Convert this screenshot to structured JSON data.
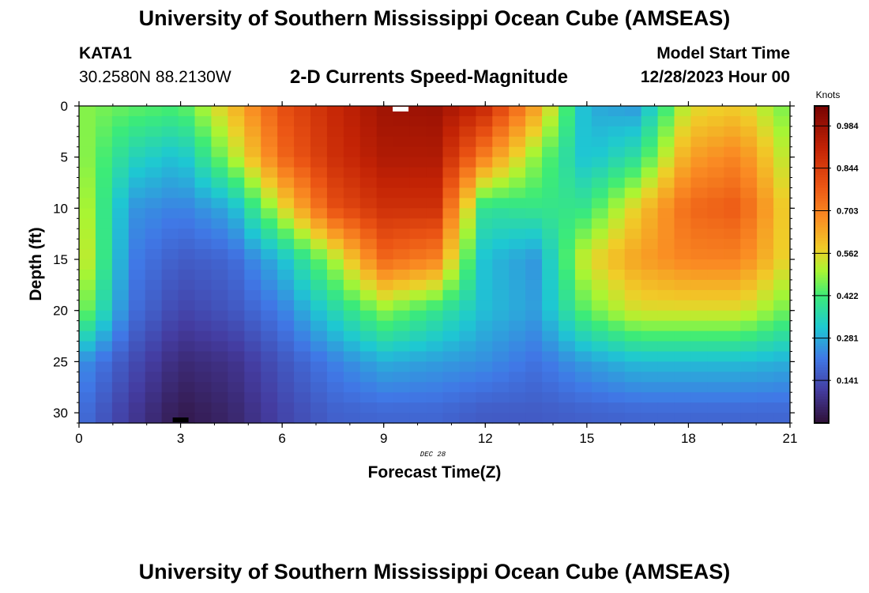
{
  "header": {
    "title": "University of Southern Mississippi Ocean Cube (AMSEAS)",
    "station_id": "KATA1",
    "station_coords": "30.2580N  88.2130W",
    "plot_title": "2-D Currents Speed-Magnitude",
    "model_start_label": "Model Start Time",
    "model_start_value": "12/28/2023 Hour 00"
  },
  "footer": {
    "title": "University of Southern Mississippi Ocean Cube (AMSEAS)"
  },
  "chart_data": {
    "type": "heatmap",
    "title": "2-D Currents Speed-Magnitude",
    "xlabel": "Forecast Time(Z)",
    "ylabel": "Depth (ft)",
    "date_label": "DEC 28",
    "x_range": [
      0,
      21
    ],
    "y_range": [
      0,
      31
    ],
    "x_ticks": [
      "0",
      "3",
      "6",
      "9",
      "12",
      "15",
      "18",
      "21"
    ],
    "y_ticks": [
      "0",
      "5",
      "10",
      "15",
      "20",
      "25",
      "30"
    ],
    "colorbar": {
      "unit": "Knots",
      "range": [
        0.0,
        1.05
      ],
      "ticks": [
        "0.984",
        "0.844",
        "0.703",
        "0.562",
        "0.422",
        "0.281",
        "0.141"
      ],
      "tick_values": [
        0.984,
        0.844,
        0.703,
        0.562,
        0.422,
        0.281,
        0.141
      ]
    },
    "depth_levels_ft": [
      0,
      5,
      10,
      15,
      20,
      25,
      30
    ],
    "forecast_hours": [
      0,
      1.5,
      3,
      4.5,
      6,
      7.5,
      9,
      10.5,
      12,
      13.5,
      15,
      16.5,
      18,
      19.5,
      21
    ],
    "speed_knots": [
      [
        0.48,
        0.45,
        0.43,
        0.6,
        0.8,
        0.9,
        0.98,
        0.99,
        0.9,
        0.65,
        0.28,
        0.25,
        0.55,
        0.58,
        0.45
      ],
      [
        0.5,
        0.35,
        0.3,
        0.5,
        0.75,
        0.88,
        0.95,
        0.95,
        0.7,
        0.48,
        0.3,
        0.38,
        0.65,
        0.7,
        0.5
      ],
      [
        0.55,
        0.25,
        0.22,
        0.28,
        0.55,
        0.8,
        0.88,
        0.88,
        0.38,
        0.4,
        0.4,
        0.58,
        0.75,
        0.78,
        0.55
      ],
      [
        0.58,
        0.22,
        0.16,
        0.18,
        0.3,
        0.5,
        0.75,
        0.7,
        0.3,
        0.25,
        0.55,
        0.65,
        0.7,
        0.7,
        0.55
      ],
      [
        0.5,
        0.2,
        0.12,
        0.15,
        0.22,
        0.35,
        0.48,
        0.4,
        0.3,
        0.26,
        0.45,
        0.55,
        0.55,
        0.55,
        0.45
      ],
      [
        0.25,
        0.14,
        0.06,
        0.08,
        0.15,
        0.22,
        0.28,
        0.26,
        0.24,
        0.2,
        0.26,
        0.3,
        0.3,
        0.3,
        0.28
      ],
      [
        0.2,
        0.1,
        0.02,
        0.05,
        0.12,
        0.17,
        0.18,
        0.18,
        0.16,
        0.16,
        0.17,
        0.18,
        0.18,
        0.18,
        0.18
      ]
    ],
    "markers": [
      {
        "name": "surface-marker",
        "x": 9.5,
        "y": 0,
        "color": "#ffffff"
      },
      {
        "name": "bottom-marker",
        "x": 3.0,
        "y": 31,
        "color": "#000000"
      }
    ]
  }
}
